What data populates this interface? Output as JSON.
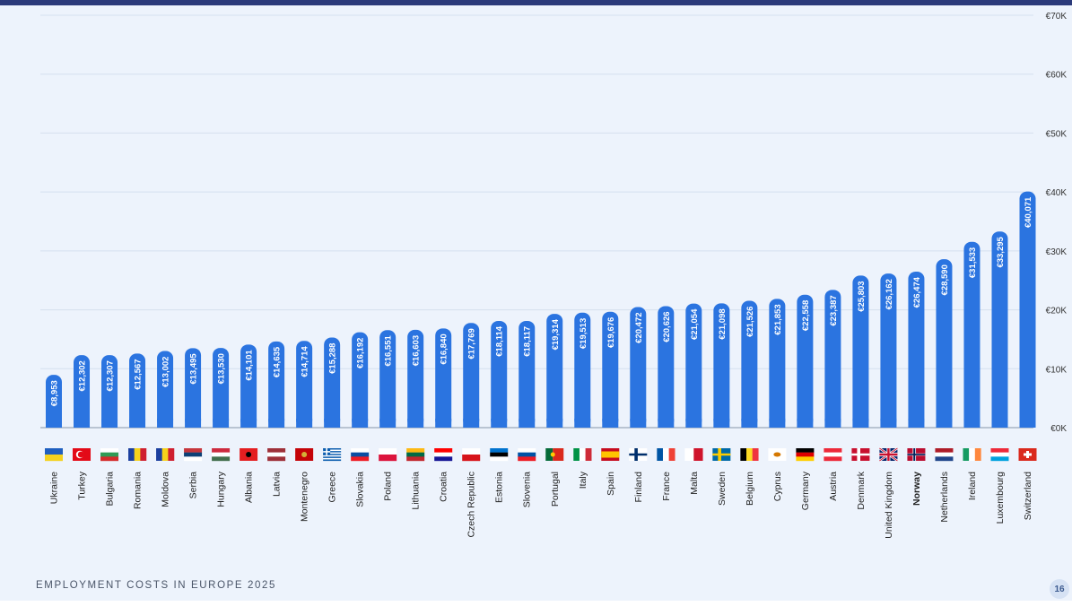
{
  "footer": {
    "title": "EMPLOYMENT COSTS IN EUROPE 2025",
    "page_number": "16"
  },
  "colors": {
    "bar": "#2b74e0",
    "grid": "#d5e0ef",
    "axis_text": "#333333",
    "background": "#edf3fc"
  },
  "chart_data": {
    "type": "bar",
    "title": "",
    "xlabel": "",
    "ylabel": "",
    "ylim": [
      0,
      70000
    ],
    "grid": true,
    "y_axis_position": "right",
    "y_ticks": [
      0,
      10000,
      20000,
      30000,
      40000,
      50000,
      60000,
      70000
    ],
    "y_tick_labels": [
      "€0K",
      "€10K",
      "€20K",
      "€30K",
      "€40K",
      "€50K",
      "€60K",
      "€70K"
    ],
    "categories": [
      "Ukraine",
      "Turkey",
      "Bulgaria",
      "Romania",
      "Moldova",
      "Serbia",
      "Hungary",
      "Albania",
      "Latvia",
      "Montenegro",
      "Greece",
      "Slovakia",
      "Poland",
      "Lithuania",
      "Croatia",
      "Czech Republic",
      "Estonia",
      "Slovenia",
      "Portugal",
      "Italy",
      "Spain",
      "Finland",
      "France",
      "Malta",
      "Sweden",
      "Belgium",
      "Cyprus",
      "Germany",
      "Austria",
      "Denmark",
      "United Kingdom",
      "Norway",
      "Netherlands",
      "Ireland",
      "Luxembourg",
      "Switzerland"
    ],
    "values": [
      8953,
      12302,
      12307,
      12567,
      13002,
      13495,
      13530,
      14101,
      14635,
      14714,
      15288,
      16192,
      16551,
      16603,
      16840,
      17769,
      18114,
      18117,
      19314,
      19513,
      19676,
      20472,
      20626,
      21054,
      21098,
      21526,
      21853,
      22558,
      23387,
      25803,
      26162,
      26474,
      28590,
      31533,
      33295,
      40071
    ],
    "value_labels": [
      "€8,953",
      "€12,302",
      "€12,307",
      "€12,567",
      "€13,002",
      "€13,495",
      "€13,530",
      "€14,101",
      "€14,635",
      "€14,714",
      "€15,288",
      "€16,192",
      "€16,551",
      "€16,603",
      "€16,840",
      "€17,769",
      "€18,114",
      "€18,117",
      "€19,314",
      "€19,513",
      "€19,676",
      "€20,472",
      "€20,626",
      "€21,054",
      "€21,098",
      "€21,526",
      "€21,853",
      "€22,558",
      "€23,387",
      "€25,803",
      "€26,162",
      "€26,474",
      "€28,590",
      "€31,533",
      "€33,295",
      "€40,071"
    ],
    "flags": [
      "flag-ukraine-icon",
      "flag-turkey-icon",
      "flag-bulgaria-icon",
      "flag-romania-icon",
      "flag-moldova-icon",
      "flag-serbia-icon",
      "flag-hungary-icon",
      "flag-albania-icon",
      "flag-latvia-icon",
      "flag-montenegro-icon",
      "flag-greece-icon",
      "flag-slovakia-icon",
      "flag-poland-icon",
      "flag-lithuania-icon",
      "flag-croatia-icon",
      "flag-czech-republic-icon",
      "flag-estonia-icon",
      "flag-slovenia-icon",
      "flag-portugal-icon",
      "flag-italy-icon",
      "flag-spain-icon",
      "flag-finland-icon",
      "flag-france-icon",
      "flag-malta-icon",
      "flag-sweden-icon",
      "flag-belgium-icon",
      "flag-cyprus-icon",
      "flag-germany-icon",
      "flag-austria-icon",
      "flag-denmark-icon",
      "flag-united-kingdom-icon",
      "flag-norway-icon",
      "flag-netherlands-icon",
      "flag-ireland-icon",
      "flag-luxembourg-icon",
      "flag-switzerland-icon"
    ],
    "emphasized_categories": [
      "Norway"
    ]
  }
}
